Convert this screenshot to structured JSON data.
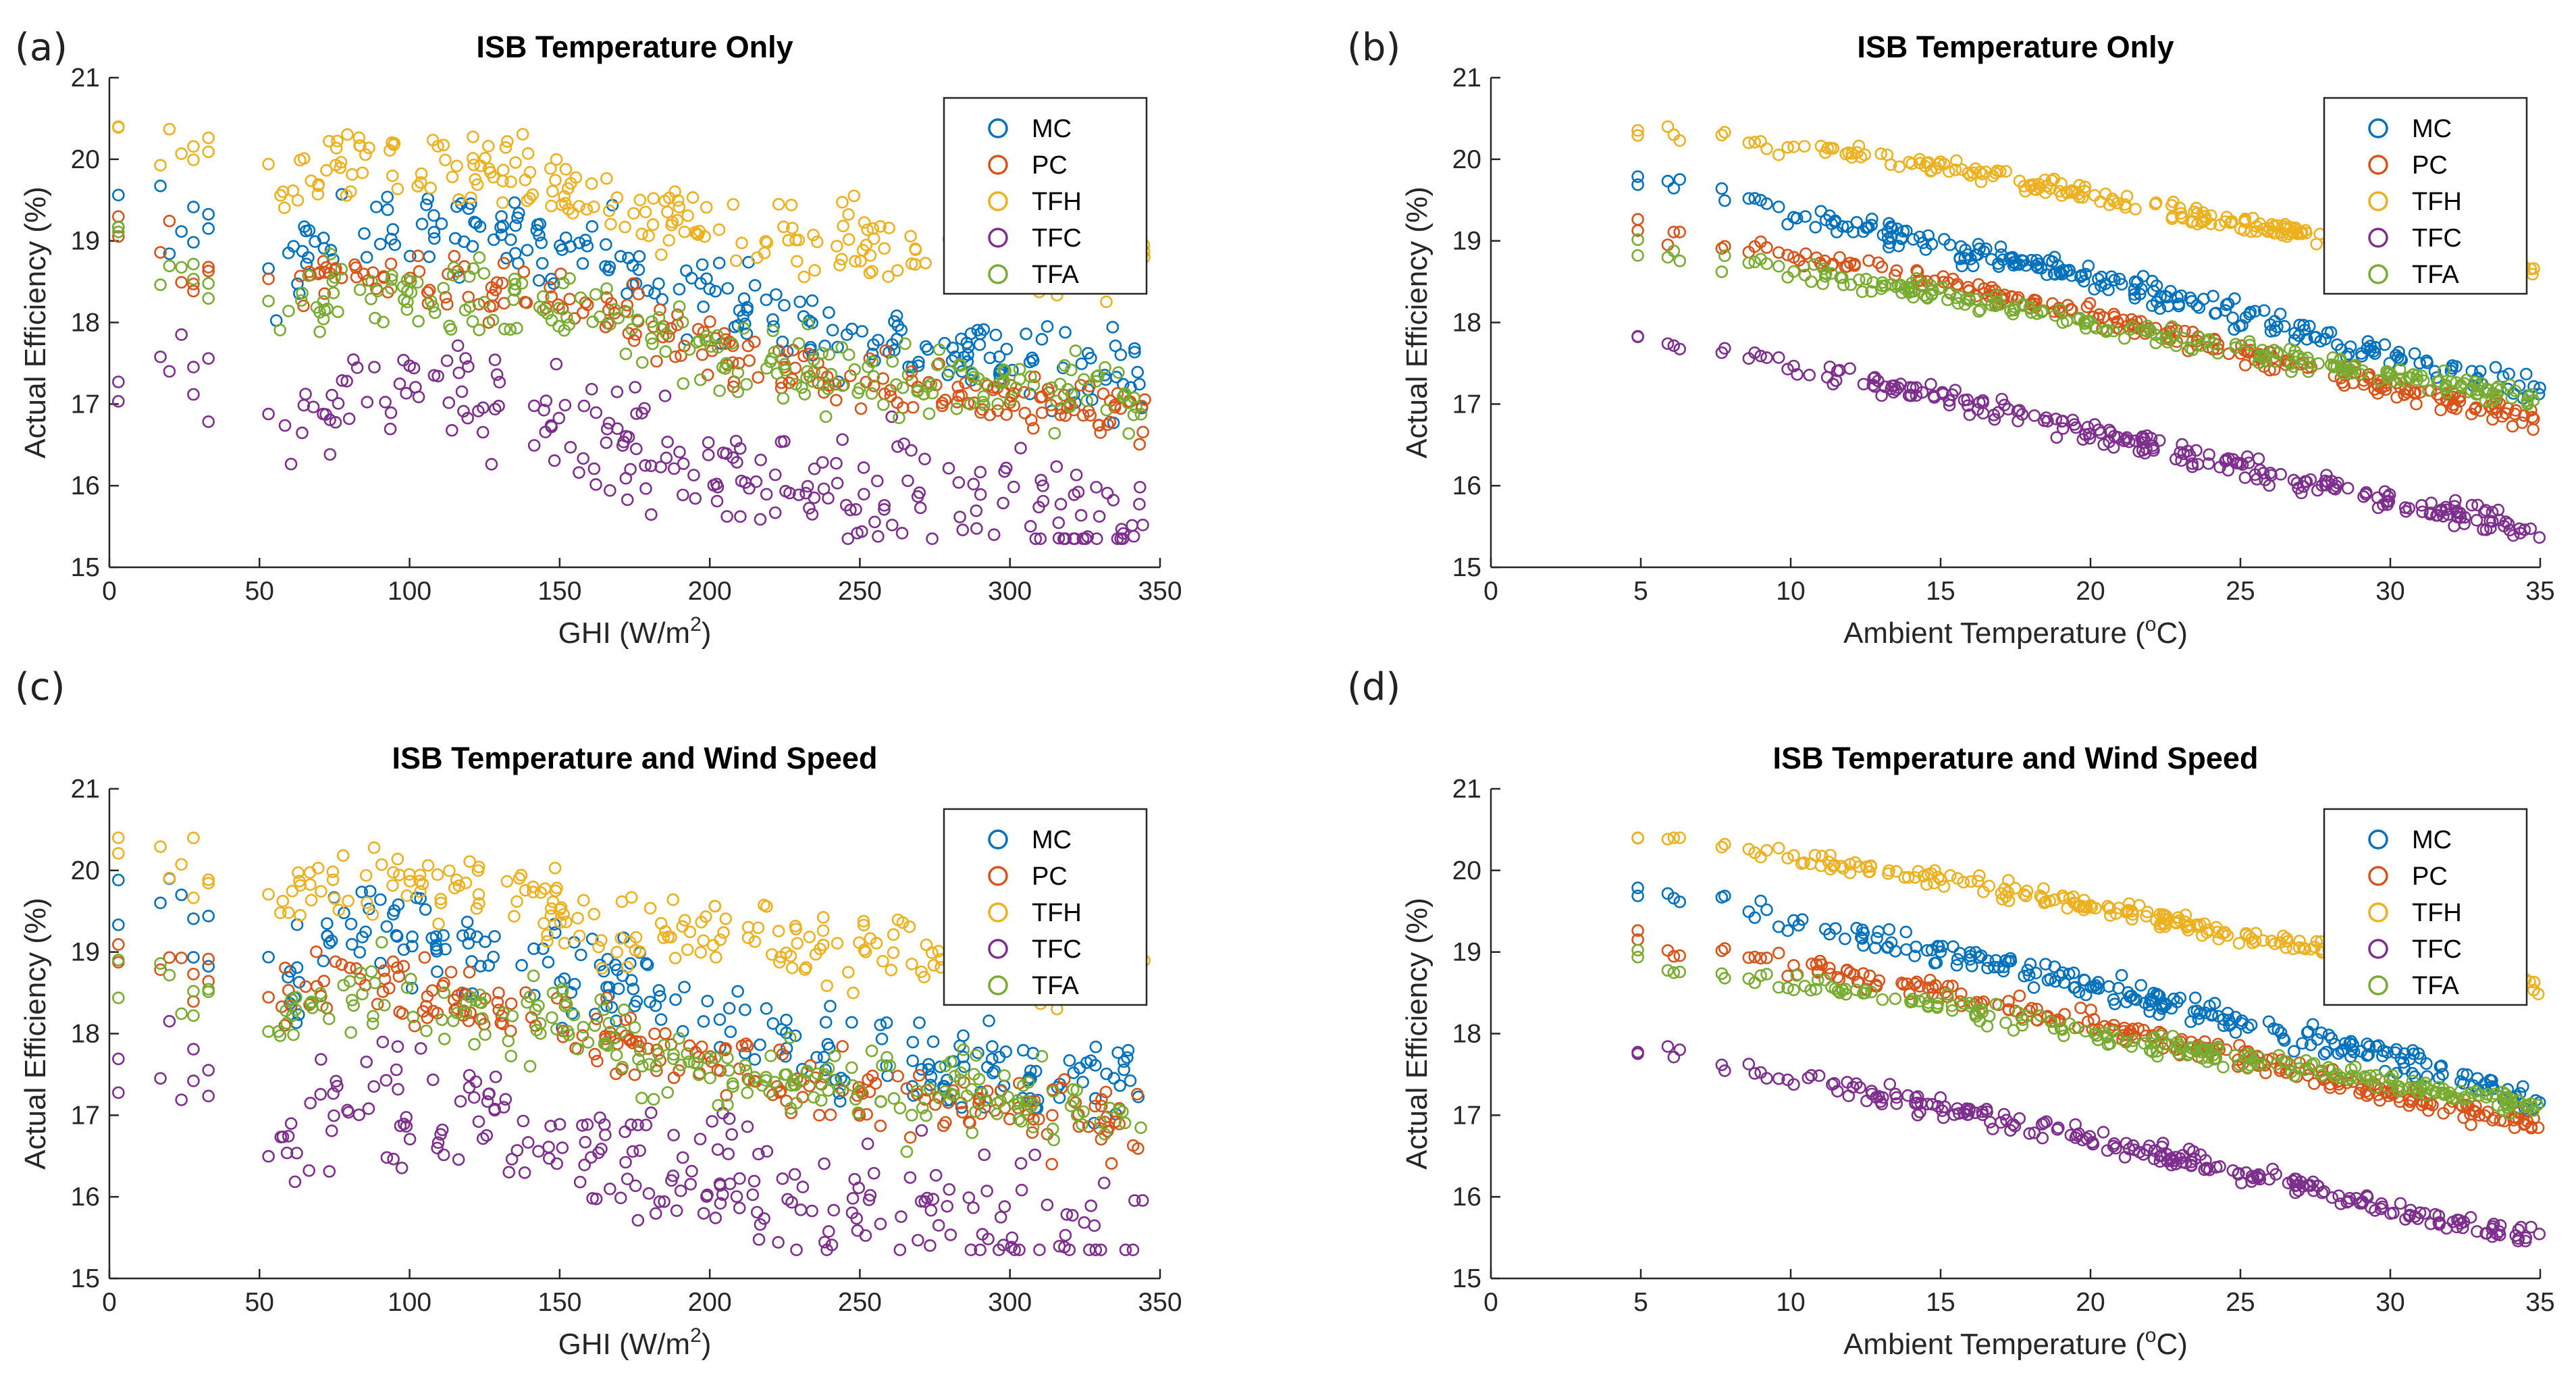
{
  "figure": {
    "colors": {
      "MC": "#0072BD",
      "PC": "#D95319",
      "TFH": "#EDB120",
      "TFC": "#7E2F8E",
      "TFA": "#77AC30"
    }
  },
  "chart_data": [
    {
      "panel": "(a)",
      "type": "scatter",
      "title": "ISB Temperature Only",
      "xlabel": "GHI (W/m",
      "xlabel_sup": "2",
      "xlabel_suffix": ")",
      "ylabel": "Actual Efficiency (%)",
      "xlim": [
        0,
        350
      ],
      "ylim": [
        15,
        21
      ],
      "xticks": [
        0,
        50,
        100,
        150,
        200,
        250,
        300,
        350
      ],
      "yticks": [
        15,
        16,
        17,
        18,
        19,
        20,
        21
      ],
      "legend_position": "top-right",
      "series_trends": [
        {
          "name": "MC",
          "x": [
            3,
            15,
            25,
            35,
            55,
            80,
            100,
            120,
            140,
            160,
            180,
            200,
            225,
            250,
            275,
            300,
            325,
            345
          ],
          "y": [
            19.65,
            19.5,
            19.25,
            19.35,
            18.45,
            19.4,
            19.25,
            19.15,
            19.0,
            18.85,
            18.55,
            18.35,
            18.0,
            17.75,
            17.6,
            17.5,
            17.35,
            17.3
          ],
          "spread": 0.5
        },
        {
          "name": "PC",
          "x": [
            3,
            15,
            25,
            35,
            55,
            80,
            100,
            120,
            140,
            160,
            180,
            200,
            225,
            250,
            275,
            300,
            325,
            345
          ],
          "y": [
            19.05,
            18.9,
            18.7,
            18.75,
            18.3,
            18.7,
            18.55,
            18.45,
            18.35,
            18.2,
            17.95,
            17.75,
            17.45,
            17.3,
            17.15,
            17.05,
            16.95,
            16.85
          ],
          "spread": 0.35
        },
        {
          "name": "TFH",
          "x": [
            3,
            15,
            25,
            35,
            55,
            80,
            100,
            120,
            140,
            160,
            180,
            200,
            225,
            250,
            275,
            300,
            325,
            345
          ],
          "y": [
            20.3,
            20.15,
            20.05,
            20.1,
            19.5,
            20.1,
            19.95,
            19.9,
            19.75,
            19.5,
            19.3,
            19.2,
            19.05,
            18.95,
            18.9,
            18.8,
            18.75,
            18.65
          ],
          "spread": 0.45
        },
        {
          "name": "TFC",
          "x": [
            3,
            15,
            25,
            35,
            55,
            80,
            100,
            120,
            140,
            160,
            180,
            200,
            225,
            250,
            275,
            300,
            325,
            345
          ],
          "y": [
            17.7,
            17.55,
            17.35,
            17.45,
            16.7,
            17.25,
            17.15,
            17.0,
            16.85,
            16.6,
            16.35,
            16.2,
            16.0,
            15.9,
            15.8,
            15.7,
            15.65,
            15.6
          ],
          "spread": 0.7
        },
        {
          "name": "TFA",
          "x": [
            3,
            15,
            25,
            35,
            55,
            80,
            100,
            120,
            140,
            160,
            180,
            200,
            225,
            250,
            275,
            300,
            325,
            345
          ],
          "y": [
            18.85,
            18.65,
            18.5,
            18.6,
            18.0,
            18.5,
            18.35,
            18.3,
            18.2,
            18.05,
            17.8,
            17.6,
            17.4,
            17.3,
            17.25,
            17.2,
            17.15,
            17.1
          ],
          "spread": 0.45
        }
      ]
    },
    {
      "panel": "(b)",
      "type": "scatter",
      "title": "ISB Temperature Only",
      "xlabel": "Ambient Temperature (",
      "xlabel_sup": "o",
      "xlabel_suffix": "C)",
      "ylabel": "Actual Efficiency (%)",
      "xlim": [
        0,
        35
      ],
      "ylim": [
        15,
        21
      ],
      "xticks": [
        0,
        5,
        10,
        15,
        20,
        25,
        30,
        35
      ],
      "yticks": [
        15,
        16,
        17,
        18,
        19,
        20,
        21
      ],
      "legend_position": "top-right",
      "series_trends": [
        {
          "name": "MC",
          "x": [
            5,
            8,
            10.5,
            15,
            20,
            25,
            30,
            35
          ],
          "y": [
            19.75,
            19.5,
            19.3,
            18.95,
            18.55,
            18.1,
            17.6,
            17.15
          ],
          "spread": 0.18
        },
        {
          "name": "PC",
          "x": [
            5,
            8,
            10.5,
            15,
            20,
            25,
            30,
            35
          ],
          "y": [
            19.15,
            18.95,
            18.8,
            18.5,
            18.1,
            17.65,
            17.2,
            16.8
          ],
          "spread": 0.14
        },
        {
          "name": "TFH",
          "x": [
            5,
            8,
            10.5,
            15,
            20,
            25,
            30,
            35
          ],
          "y": [
            20.4,
            20.25,
            20.15,
            19.9,
            19.55,
            19.2,
            18.9,
            18.6
          ],
          "spread": 0.12
        },
        {
          "name": "TFC",
          "x": [
            5,
            8,
            10.5,
            15,
            20,
            25,
            30,
            35
          ],
          "y": [
            17.8,
            17.6,
            17.45,
            17.1,
            16.65,
            16.25,
            15.8,
            15.45
          ],
          "spread": 0.14
        },
        {
          "name": "TFA",
          "x": [
            5,
            8,
            10.5,
            15,
            20,
            25,
            30,
            35
          ],
          "y": [
            18.9,
            18.75,
            18.6,
            18.35,
            18.0,
            17.65,
            17.35,
            17.05
          ],
          "spread": 0.14
        }
      ]
    },
    {
      "panel": "(c)",
      "type": "scatter",
      "title": "ISB Temperature and Wind Speed",
      "xlabel": "GHI (W/m",
      "xlabel_sup": "2",
      "xlabel_suffix": ")",
      "ylabel": "Actual Efficiency (%)",
      "xlim": [
        0,
        350
      ],
      "ylim": [
        15,
        21
      ],
      "xticks": [
        0,
        50,
        100,
        150,
        200,
        250,
        300,
        350
      ],
      "yticks": [
        15,
        16,
        17,
        18,
        19,
        20,
        21
      ],
      "legend_position": "top-right",
      "series_trends": [
        {
          "name": "MC",
          "x": [
            3,
            15,
            25,
            35,
            55,
            80,
            100,
            120,
            140,
            160,
            180,
            200,
            225,
            250,
            275,
            300,
            325,
            345
          ],
          "y": [
            19.65,
            19.5,
            19.3,
            19.35,
            18.45,
            19.3,
            19.15,
            19.05,
            18.9,
            18.7,
            18.45,
            18.25,
            17.95,
            17.75,
            17.6,
            17.5,
            17.45,
            17.4
          ],
          "spread": 0.55
        },
        {
          "name": "PC",
          "x": [
            3,
            15,
            25,
            35,
            55,
            80,
            100,
            120,
            140,
            160,
            180,
            200,
            225,
            250,
            275,
            300,
            325,
            345
          ],
          "y": [
            19.05,
            18.9,
            18.75,
            18.75,
            18.4,
            18.65,
            18.5,
            18.4,
            18.25,
            18.05,
            17.85,
            17.65,
            17.4,
            17.25,
            17.15,
            17.05,
            17.0,
            16.95
          ],
          "spread": 0.45
        },
        {
          "name": "TFH",
          "x": [
            3,
            15,
            25,
            35,
            55,
            80,
            100,
            120,
            140,
            160,
            180,
            200,
            225,
            250,
            275,
            300,
            325,
            345
          ],
          "y": [
            20.3,
            20.15,
            20.05,
            20.1,
            19.5,
            20.05,
            19.9,
            19.85,
            19.7,
            19.45,
            19.3,
            19.2,
            19.1,
            19.0,
            18.95,
            18.85,
            18.8,
            18.75
          ],
          "spread": 0.45
        },
        {
          "name": "TFC",
          "x": [
            3,
            15,
            25,
            35,
            55,
            80,
            100,
            120,
            140,
            160,
            180,
            200,
            225,
            250,
            275,
            300,
            325,
            345
          ],
          "y": [
            17.7,
            17.55,
            17.4,
            17.45,
            16.7,
            17.2,
            17.05,
            16.95,
            16.8,
            16.55,
            16.35,
            16.2,
            16.0,
            15.95,
            15.85,
            15.75,
            15.7,
            15.65
          ],
          "spread": 0.75
        },
        {
          "name": "TFA",
          "x": [
            3,
            15,
            25,
            35,
            55,
            80,
            100,
            120,
            140,
            160,
            180,
            200,
            225,
            250,
            275,
            300,
            325,
            345
          ],
          "y": [
            18.85,
            18.65,
            18.55,
            18.6,
            18.0,
            18.5,
            18.35,
            18.25,
            18.15,
            18.0,
            17.75,
            17.6,
            17.4,
            17.3,
            17.25,
            17.2,
            17.2,
            17.15
          ],
          "spread": 0.5
        }
      ]
    },
    {
      "panel": "(d)",
      "type": "scatter",
      "title": "ISB Temperature and Wind Speed",
      "xlabel": "Ambient Temperature (",
      "xlabel_sup": "o",
      "xlabel_suffix": "C)",
      "ylabel": "Actual Efficiency (%)",
      "xlim": [
        0,
        35
      ],
      "ylim": [
        15,
        21
      ],
      "xticks": [
        0,
        5,
        10,
        15,
        20,
        25,
        30,
        35
      ],
      "yticks": [
        15,
        16,
        17,
        18,
        19,
        20,
        21
      ],
      "legend_position": "top-right",
      "series_trends": [
        {
          "name": "MC",
          "x": [
            5,
            8,
            10.5,
            15,
            20,
            25,
            30,
            35
          ],
          "y": [
            19.75,
            19.55,
            19.35,
            19.0,
            18.6,
            18.15,
            17.7,
            17.2
          ],
          "spread": 0.18
        },
        {
          "name": "PC",
          "x": [
            5,
            8,
            10.5,
            15,
            20,
            25,
            30,
            35
          ],
          "y": [
            19.1,
            18.95,
            18.8,
            18.5,
            18.15,
            17.7,
            17.25,
            16.85
          ],
          "spread": 0.14
        },
        {
          "name": "TFH",
          "x": [
            5,
            8,
            10.5,
            15,
            20,
            25,
            30,
            35
          ],
          "y": [
            20.4,
            20.25,
            20.15,
            19.9,
            19.55,
            19.2,
            18.9,
            18.6
          ],
          "spread": 0.12
        },
        {
          "name": "TFC",
          "x": [
            5,
            8,
            10.5,
            15,
            20,
            25,
            30,
            35
          ],
          "y": [
            17.8,
            17.6,
            17.45,
            17.1,
            16.7,
            16.3,
            15.85,
            15.5
          ],
          "spread": 0.14
        },
        {
          "name": "TFA",
          "x": [
            5,
            8,
            10.5,
            15,
            20,
            25,
            30,
            35
          ],
          "y": [
            18.9,
            18.75,
            18.6,
            18.35,
            18.0,
            17.7,
            17.4,
            17.1
          ],
          "spread": 0.14
        }
      ]
    }
  ]
}
